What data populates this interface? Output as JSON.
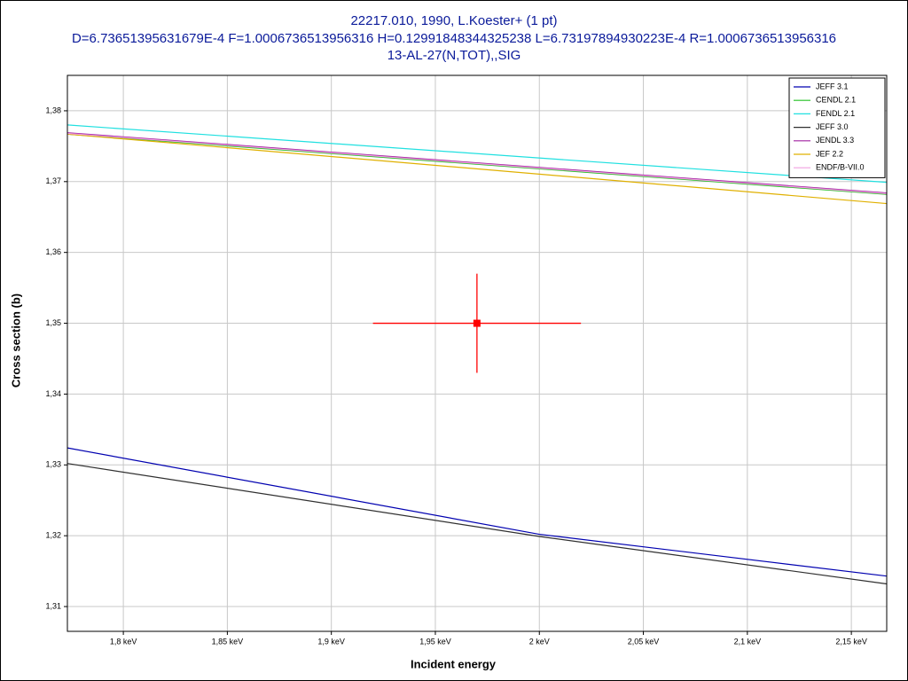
{
  "chart_data": {
    "type": "line",
    "title": "22217.010, 1990, L.Koester+ (1 pt)",
    "subtitle": "D=6.73651395631679E-4 F=1.0006736513956316 H=0.12991848344325238 L=6.73197894930223E-4 R=1.0006736513956316",
    "reaction": "13-AL-27(N,TOT),,SIG",
    "x_label": "Incident energy",
    "y_label": "Cross section (b)",
    "xlim": [
      1.7731,
      2.167
    ],
    "ylim": [
      1.3065,
      1.385
    ],
    "xticks": [
      {
        "value": 1.8,
        "label": "1,8 keV"
      },
      {
        "value": 1.85,
        "label": "1,85 keV"
      },
      {
        "value": 1.9,
        "label": "1,9 keV"
      },
      {
        "value": 1.95,
        "label": "1,95 keV"
      },
      {
        "value": 2,
        "label": "2 keV"
      },
      {
        "value": 2.05,
        "label": "2,05 keV"
      },
      {
        "value": 2.1,
        "label": "2,1 keV"
      },
      {
        "value": 2.15,
        "label": "2,15 keV"
      }
    ],
    "yticks": [
      {
        "value": 1.31,
        "label": "1,31"
      },
      {
        "value": 1.32,
        "label": "1,32"
      },
      {
        "value": 1.33,
        "label": "1,33"
      },
      {
        "value": 1.34,
        "label": "1,34"
      },
      {
        "value": 1.35,
        "label": "1,35"
      },
      {
        "value": 1.36,
        "label": "1,36"
      },
      {
        "value": 1.37,
        "label": "1,37"
      },
      {
        "value": 1.38,
        "label": "1,38"
      }
    ],
    "grid": true,
    "legend": "top-right",
    "series": [
      {
        "name": "JEFF 3.1",
        "color": "#0000b0",
        "x": [
          1.7731,
          2.0,
          2.167
        ],
        "values": [
          1.3324,
          1.3202,
          1.3143
        ]
      },
      {
        "name": "CENDL 2.1",
        "color": "#20c020",
        "x": [
          1.7731,
          2.167
        ],
        "values": [
          1.3767,
          1.3682
        ]
      },
      {
        "name": "FENDL 2.1",
        "color": "#20e0e0",
        "x": [
          1.7731,
          2.167
        ],
        "values": [
          1.378,
          1.3699
        ]
      },
      {
        "name": "JEFF 3.0",
        "color": "#303030",
        "x": [
          1.7731,
          2.0,
          2.167
        ],
        "values": [
          1.3302,
          1.3199,
          1.3132
        ]
      },
      {
        "name": "JENDL 3.3",
        "color": "#a020a0",
        "x": [
          1.7731,
          2.167
        ],
        "values": [
          1.3769,
          1.3684
        ]
      },
      {
        "name": "JEF 2.2",
        "color": "#e0b000",
        "x": [
          1.7731,
          2.167
        ],
        "values": [
          1.3767,
          1.3669
        ]
      },
      {
        "name": "ENDF/B-VII.0",
        "color": "#f0a0e0",
        "x": [
          1.7731,
          2.167
        ],
        "values": [
          1.3768,
          1.3683
        ]
      }
    ],
    "point": {
      "x": 1.97,
      "y": 1.35,
      "xerr": 0.05,
      "yerr": 0.007,
      "color": "#ff0000"
    }
  }
}
